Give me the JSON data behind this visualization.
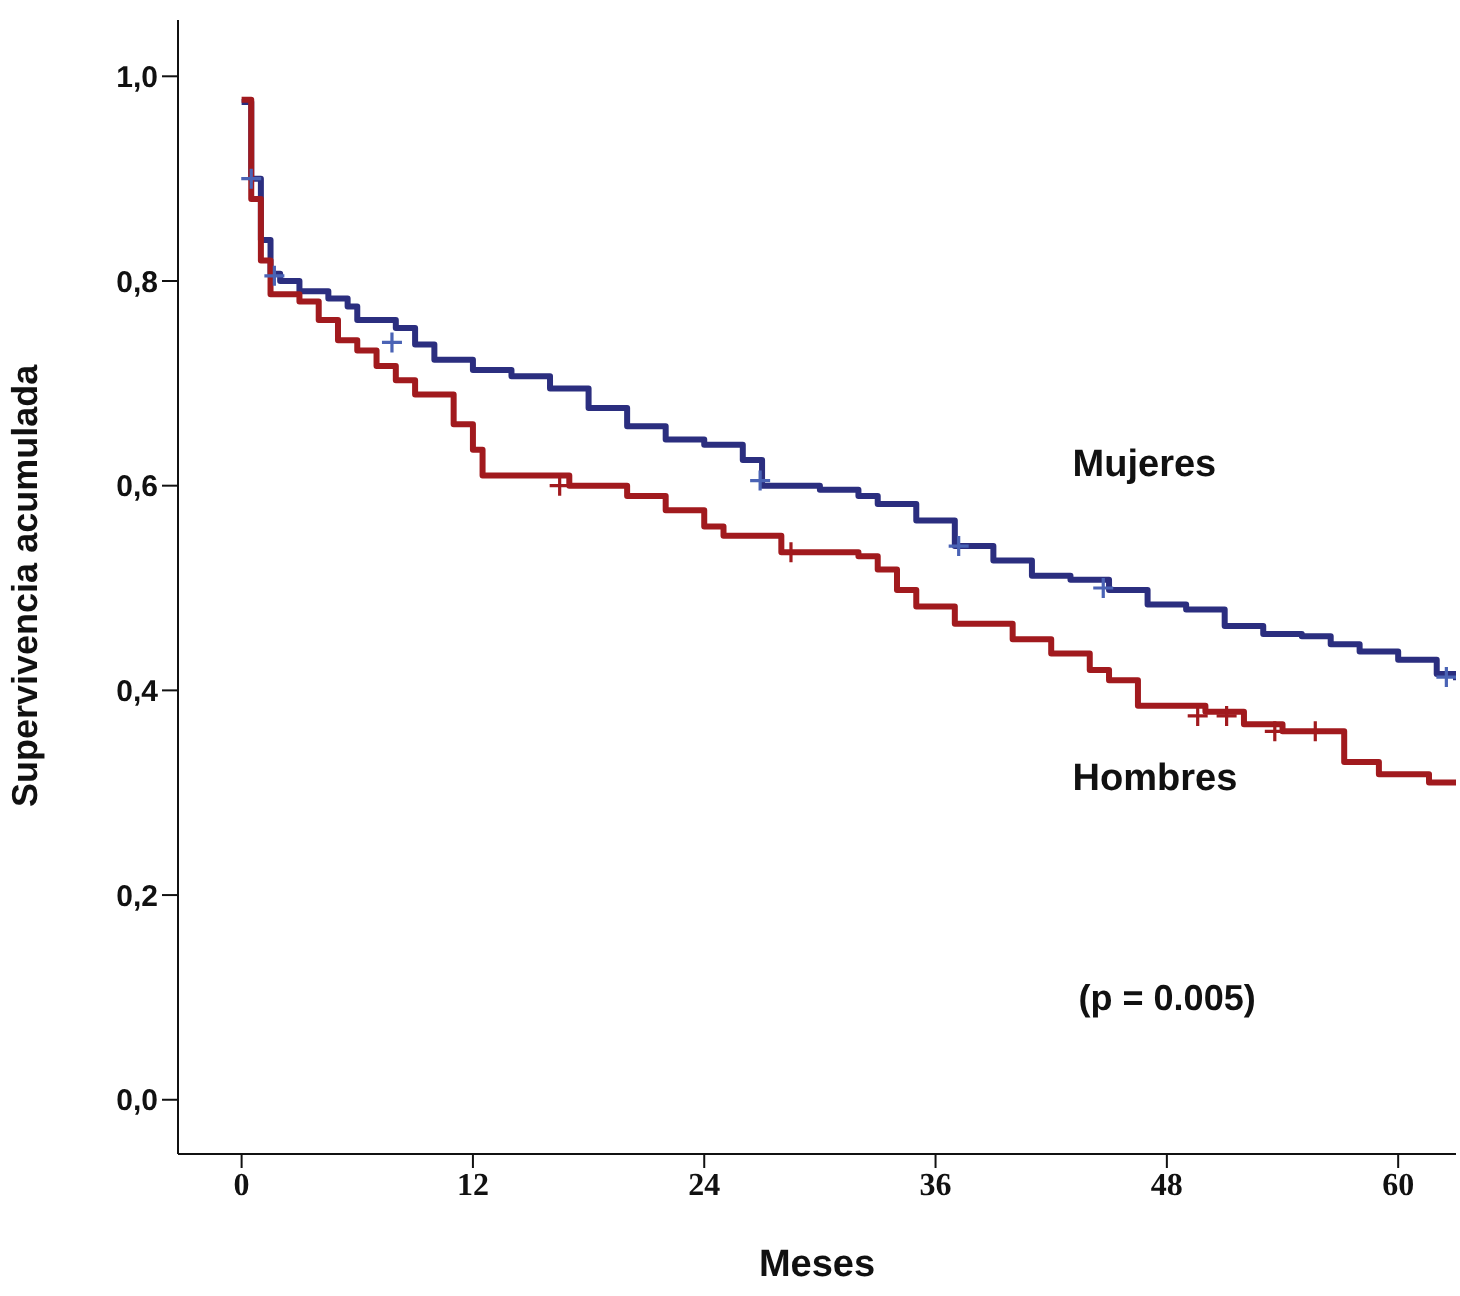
{
  "chart_data": {
    "type": "step",
    "xlabel": "Meses",
    "ylabel": "Supervivencia acumulada",
    "xlim": [
      -3.3,
      63
    ],
    "xticks": [
      0,
      12,
      24,
      36,
      48,
      60
    ],
    "ylim": [
      -0.053,
      1.055
    ],
    "yticks": [
      {
        "value": 0,
        "label": "0,0"
      },
      {
        "value": 0.2,
        "label": "0,2"
      },
      {
        "value": 0.4,
        "label": "0,4"
      },
      {
        "value": 0.6,
        "label": "0,6"
      },
      {
        "value": 0.8,
        "label": "0,8"
      },
      {
        "value": 1,
        "label": "1,0"
      }
    ],
    "grid": false,
    "legend": false,
    "annotations": [
      "(p = 0.005)"
    ],
    "series": [
      {
        "name": "Mujeres",
        "color": "#2b2e7f",
        "x": [
          0,
          0.5,
          1,
          1.5,
          2,
          3,
          4.5,
          5.5,
          6,
          8,
          9,
          10,
          12,
          14,
          16,
          18,
          20,
          22,
          24,
          26,
          27,
          30,
          32,
          33,
          35,
          37,
          39,
          41,
          43,
          45,
          47,
          49,
          51,
          53,
          55,
          56.5,
          58,
          60,
          62,
          63
        ],
        "values": [
          0.975,
          0.9,
          0.84,
          0.807,
          0.8,
          0.79,
          0.783,
          0.775,
          0.762,
          0.754,
          0.738,
          0.723,
          0.713,
          0.707,
          0.695,
          0.676,
          0.658,
          0.645,
          0.64,
          0.625,
          0.6,
          0.596,
          0.59,
          0.582,
          0.566,
          0.541,
          0.527,
          0.512,
          0.508,
          0.498,
          0.484,
          0.479,
          0.463,
          0.455,
          0.453,
          0.445,
          0.438,
          0.43,
          0.416,
          0.41
        ]
      },
      {
        "name": "Hombres",
        "color": "#a11a1e",
        "x": [
          0,
          0.5,
          1,
          1.5,
          3,
          4,
          5,
          6,
          7,
          8,
          9,
          11,
          12,
          12.5,
          17,
          20,
          22,
          24,
          25,
          28,
          32,
          33,
          34,
          35,
          37,
          40,
          42,
          44,
          45,
          46.5,
          50,
          52,
          54,
          57.2,
          59,
          61.6,
          63
        ],
        "values": [
          0.977,
          0.88,
          0.82,
          0.787,
          0.78,
          0.762,
          0.742,
          0.732,
          0.717,
          0.703,
          0.689,
          0.66,
          0.635,
          0.61,
          0.6,
          0.59,
          0.576,
          0.56,
          0.551,
          0.535,
          0.531,
          0.518,
          0.498,
          0.482,
          0.465,
          0.45,
          0.436,
          0.42,
          0.41,
          0.385,
          0.379,
          0.367,
          0.36,
          0.33,
          0.318,
          0.31,
          0.31
        ]
      },
      {
        "type": "scatter",
        "marker": "cross",
        "color": "#4a63b5",
        "x": [
          0.5,
          1.7,
          7.8,
          26.9,
          37.2,
          44.7,
          62.5
        ],
        "values": [
          0.9,
          0.805,
          0.74,
          0.605,
          0.541,
          0.5,
          0.413
        ]
      },
      {
        "type": "scatter",
        "marker": "cross",
        "color": "#a11a1e",
        "x": [
          16.5,
          28.5,
          49.6,
          51.1,
          53.6,
          55.7
        ],
        "values": [
          0.6,
          0.535,
          0.375,
          0.375,
          0.36,
          0.36
        ]
      }
    ]
  }
}
